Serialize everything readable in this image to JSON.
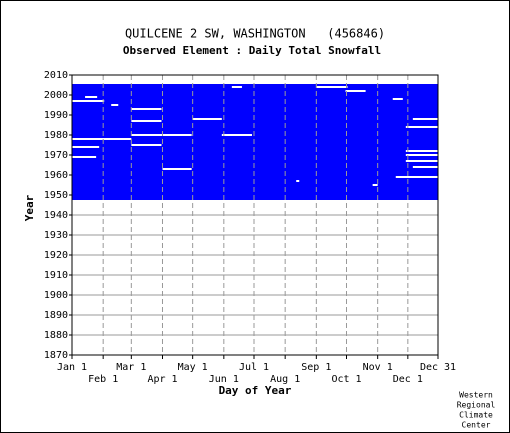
{
  "chart_data": {
    "type": "availability",
    "title": "QUILCENE 2 SW, WASHINGTON   (456846)",
    "subtitle": "Observed Element : Daily Total Snowfall",
    "x_label": "Day of Year",
    "y_label": "Year",
    "footer": [
      "Western",
      "Regional",
      "Climate",
      "Center"
    ],
    "color": "#0000ff",
    "gap_color": "#ffffff",
    "xlim": [
      1,
      365
    ],
    "xticks": [
      {
        "value": 1,
        "label": "Jan 1"
      },
      {
        "value": 32,
        "label": "Feb 1"
      },
      {
        "value": 60,
        "label": "Mar 1"
      },
      {
        "value": 91,
        "label": "Apr 1"
      },
      {
        "value": 121,
        "label": "May 1"
      },
      {
        "value": 152,
        "label": "Jun 1"
      },
      {
        "value": 182,
        "label": "Jul 1"
      },
      {
        "value": 213,
        "label": "Aug 1"
      },
      {
        "value": 244,
        "label": "Sep 1"
      },
      {
        "value": 274,
        "label": "Oct 1"
      },
      {
        "value": 305,
        "label": "Nov 1"
      },
      {
        "value": 335,
        "label": "Dec 1"
      },
      {
        "value": 365,
        "label": "Dec 31"
      }
    ],
    "ylim": [
      1870,
      2010
    ],
    "yticks": [
      1870,
      1880,
      1890,
      1900,
      1910,
      1920,
      1930,
      1940,
      1950,
      1960,
      1970,
      1980,
      1990,
      2000,
      2010
    ],
    "grid": true,
    "coverage": {
      "years": [
        1948,
        2005
      ],
      "days": [
        1,
        365
      ]
    },
    "gaps": [
      {
        "year": 2004,
        "days": [
          160,
          170
        ]
      },
      {
        "year": 2004,
        "days": [
          244,
          275
        ]
      },
      {
        "year": 2002,
        "days": [
          273,
          293
        ]
      },
      {
        "year": 1999,
        "days": [
          14,
          26
        ]
      },
      {
        "year": 1998,
        "days": [
          320,
          330
        ]
      },
      {
        "year": 1997,
        "days": [
          1,
          33
        ]
      },
      {
        "year": 1995,
        "days": [
          40,
          47
        ]
      },
      {
        "year": 1993,
        "days": [
          60,
          90
        ]
      },
      {
        "year": 1988,
        "days": [
          121,
          150
        ]
      },
      {
        "year": 1988,
        "days": [
          340,
          365
        ]
      },
      {
        "year": 1987,
        "days": [
          60,
          90
        ]
      },
      {
        "year": 1984,
        "days": [
          333,
          365
        ]
      },
      {
        "year": 1980,
        "days": [
          60,
          120
        ]
      },
      {
        "year": 1980,
        "days": [
          150,
          180
        ]
      },
      {
        "year": 1978,
        "days": [
          1,
          60
        ]
      },
      {
        "year": 1975,
        "days": [
          60,
          90
        ]
      },
      {
        "year": 1974,
        "days": [
          1,
          28
        ]
      },
      {
        "year": 1972,
        "days": [
          333,
          365
        ]
      },
      {
        "year": 1970,
        "days": [
          333,
          365
        ]
      },
      {
        "year": 1969,
        "days": [
          1,
          25
        ]
      },
      {
        "year": 1967,
        "days": [
          333,
          365
        ]
      },
      {
        "year": 1964,
        "days": [
          340,
          365
        ]
      },
      {
        "year": 1963,
        "days": [
          91,
          120
        ]
      },
      {
        "year": 1959,
        "days": [
          323,
          365
        ]
      },
      {
        "year": 1957,
        "days": [
          224,
          227
        ]
      },
      {
        "year": 1955,
        "days": [
          300,
          305
        ]
      }
    ]
  }
}
